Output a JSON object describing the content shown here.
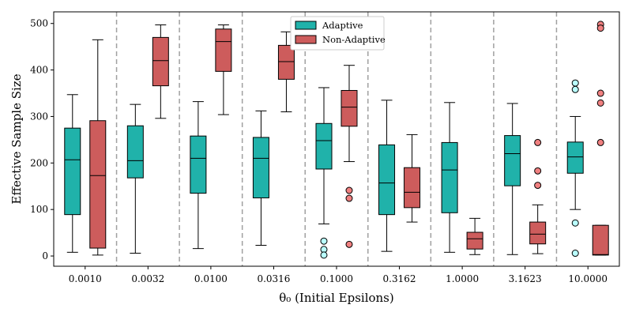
{
  "chart_data": {
    "type": "box",
    "xlabel": "θ₀ (Initial Epsilons)",
    "ylabel": "Effective Sample Size",
    "ylim": [
      -22,
      525
    ],
    "yticks": [
      0,
      100,
      200,
      300,
      400,
      500
    ],
    "categories": [
      "0.0010",
      "0.0032",
      "0.0100",
      "0.0316",
      "0.1000",
      "0.3162",
      "1.0000",
      "3.1623",
      "10.0000"
    ],
    "legend": {
      "position": "top-center"
    },
    "series": [
      {
        "name": "Adaptive",
        "color": "#20b2aa",
        "flier_color": "#b9ffff",
        "boxes": [
          {
            "whislo": 8,
            "q1": 89,
            "med": 207,
            "q3": 275,
            "whishi": 347,
            "fliers": []
          },
          {
            "whislo": 6,
            "q1": 168,
            "med": 205,
            "q3": 280,
            "whishi": 326,
            "fliers": []
          },
          {
            "whislo": 16,
            "q1": 135,
            "med": 210,
            "q3": 258,
            "whishi": 332,
            "fliers": []
          },
          {
            "whislo": 23,
            "q1": 125,
            "med": 210,
            "q3": 255,
            "whishi": 312,
            "fliers": []
          },
          {
            "whislo": 69,
            "q1": 187,
            "med": 248,
            "q3": 285,
            "whishi": 362,
            "fliers": [
              32,
              14,
              2
            ]
          },
          {
            "whislo": 10,
            "q1": 89,
            "med": 157,
            "q3": 239,
            "whishi": 335,
            "fliers": []
          },
          {
            "whislo": 8,
            "q1": 93,
            "med": 185,
            "q3": 244,
            "whishi": 330,
            "fliers": []
          },
          {
            "whislo": 3,
            "q1": 151,
            "med": 220,
            "q3": 259,
            "whishi": 328,
            "fliers": []
          },
          {
            "whislo": 100,
            "q1": 178,
            "med": 213,
            "q3": 245,
            "whishi": 300,
            "fliers": [
              372,
              358,
              71,
              6
            ]
          }
        ]
      },
      {
        "name": "Non-Adaptive",
        "color": "#cd5c5c",
        "flier_color": "#f08080",
        "boxes": [
          {
            "whislo": 2,
            "q1": 17,
            "med": 173,
            "q3": 291,
            "whishi": 465,
            "fliers": []
          },
          {
            "whislo": 296,
            "q1": 366,
            "med": 420,
            "q3": 470,
            "whishi": 497,
            "fliers": []
          },
          {
            "whislo": 304,
            "q1": 397,
            "med": 461,
            "q3": 488,
            "whishi": 497,
            "fliers": []
          },
          {
            "whislo": 310,
            "q1": 380,
            "med": 418,
            "q3": 453,
            "whishi": 482,
            "fliers": []
          },
          {
            "whislo": 203,
            "q1": 279,
            "med": 320,
            "q3": 356,
            "whishi": 410,
            "fliers": [
              141,
              124,
              25
            ]
          },
          {
            "whislo": 73,
            "q1": 104,
            "med": 137,
            "q3": 190,
            "whishi": 261,
            "fliers": []
          },
          {
            "whislo": 3,
            "q1": 15,
            "med": 37,
            "q3": 51,
            "whishi": 81,
            "fliers": []
          },
          {
            "whislo": 5,
            "q1": 26,
            "med": 47,
            "q3": 73,
            "whishi": 110,
            "fliers": [
              244,
              183,
              152
            ]
          },
          {
            "whislo": 2,
            "q1": 2,
            "med": 3,
            "q3": 66,
            "whishi": 66,
            "fliers": [
              498,
              490,
              350,
              329,
              244
            ]
          }
        ]
      }
    ]
  }
}
